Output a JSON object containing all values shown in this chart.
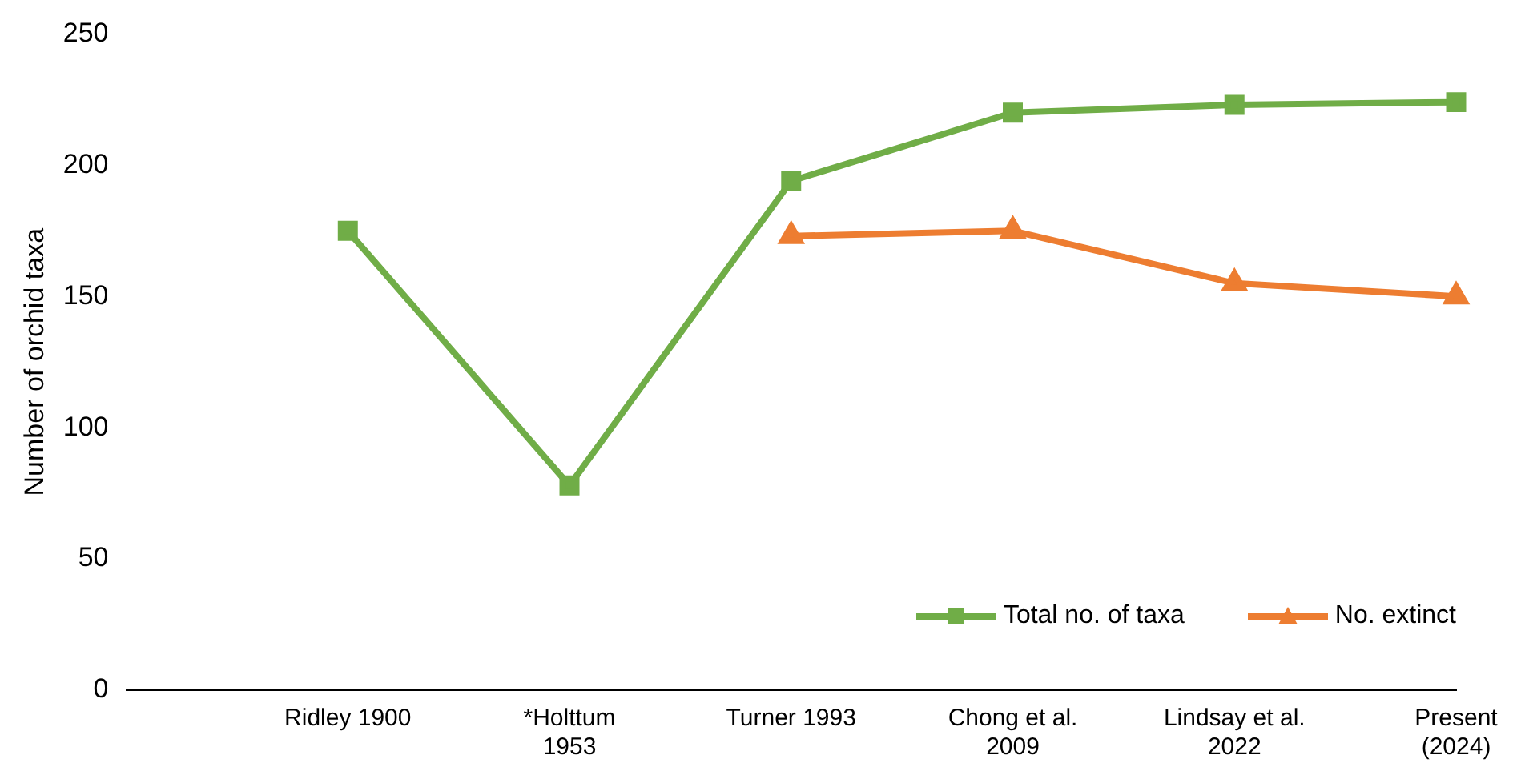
{
  "chart_data": {
    "type": "line",
    "ylabel": "Number of orchid taxa",
    "categories": [
      null,
      "Ridley 1900",
      "*Holttum\n1953",
      "Turner 1993",
      "Chong et al.\n2009",
      "Lindsay et al.\n2022",
      "Present\n(2024)"
    ],
    "series": [
      {
        "name": "Total no. of taxa",
        "color": "#70ad47",
        "marker": "square",
        "values": [
          null,
          175,
          78,
          194,
          220,
          223,
          224
        ]
      },
      {
        "name": "No. extinct",
        "color": "#ed7d31",
        "marker": "triangle",
        "values": [
          null,
          null,
          null,
          173,
          175,
          155,
          150
        ]
      }
    ],
    "ylim": [
      0,
      250
    ],
    "yticks": [
      0,
      50,
      100,
      150,
      200,
      250
    ],
    "grid": false,
    "legend": "bottom right",
    "line_style": "solid"
  }
}
